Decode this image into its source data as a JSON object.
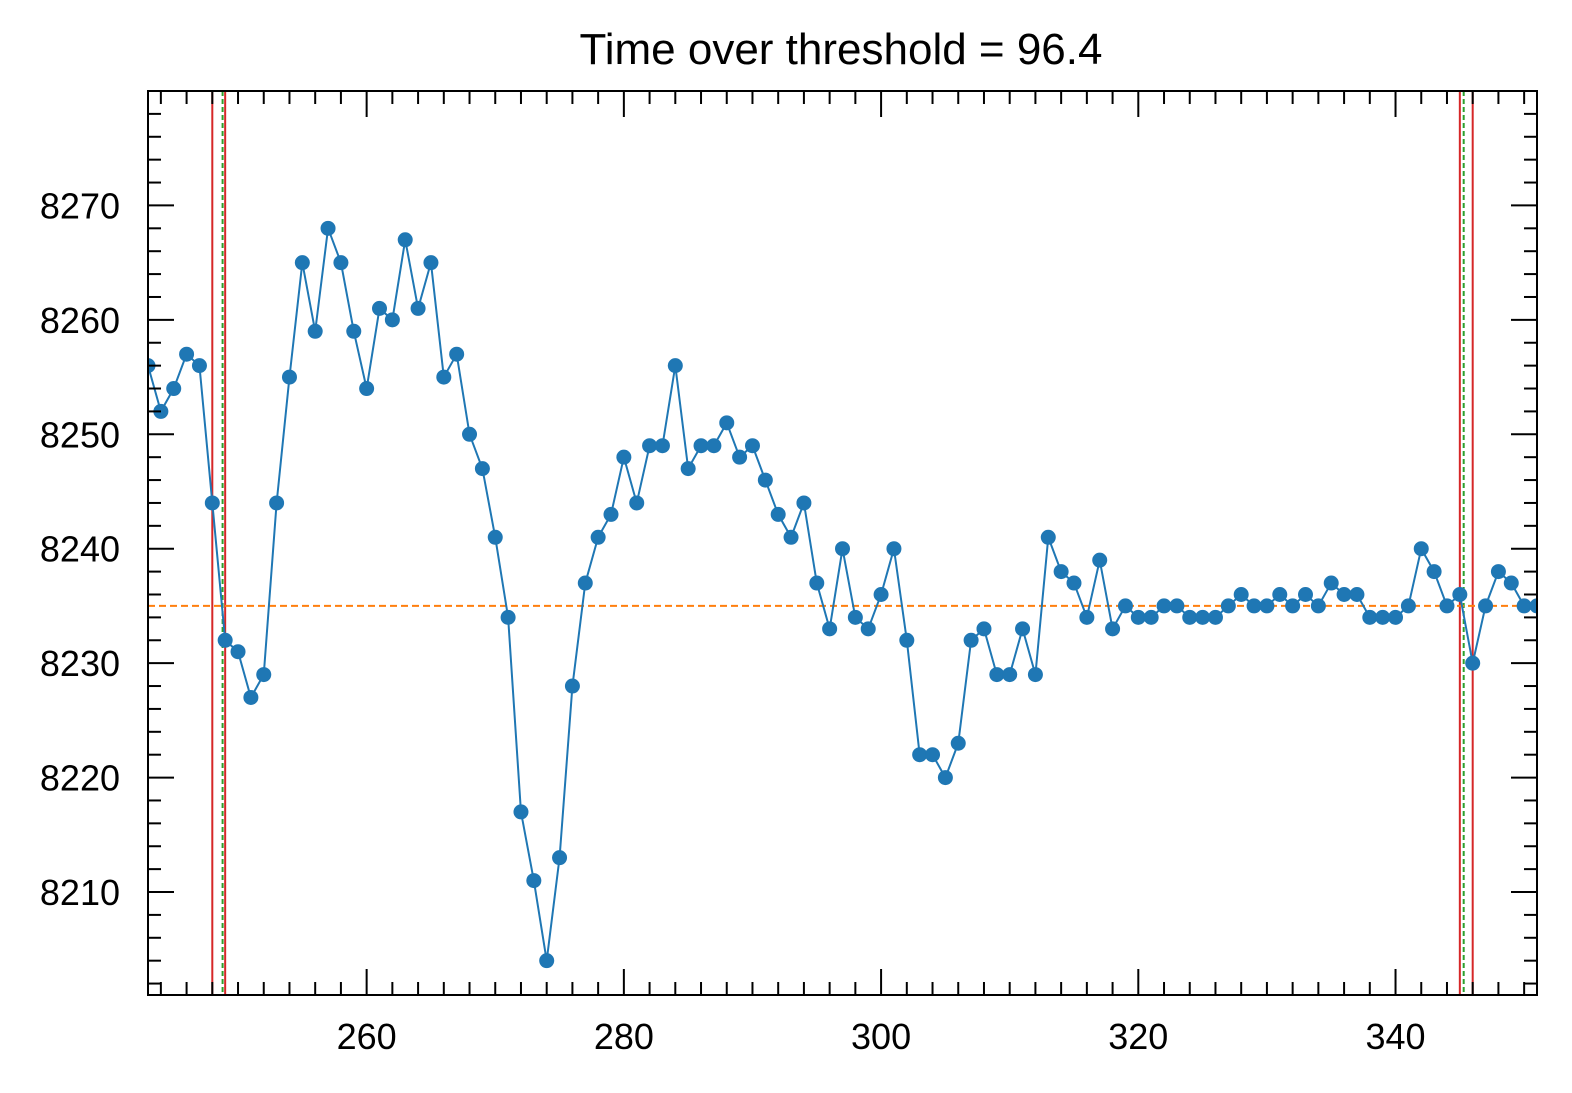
{
  "chart_data": {
    "type": "line",
    "title": "Time over threshold = 96.4",
    "xlabel": "",
    "ylabel": "",
    "xlim": [
      243,
      351
    ],
    "ylim": [
      8201,
      8280
    ],
    "x_ticks": [
      260,
      280,
      300,
      320,
      340
    ],
    "y_ticks": [
      8210,
      8220,
      8230,
      8240,
      8250,
      8260,
      8270
    ],
    "grid": false,
    "series": [
      {
        "color": "#1f77b4",
        "marker": "circle",
        "x": [
          243,
          244,
          245,
          246,
          247,
          248,
          249,
          250,
          251,
          252,
          253,
          254,
          255,
          256,
          257,
          258,
          259,
          260,
          261,
          262,
          263,
          264,
          265,
          266,
          267,
          268,
          269,
          270,
          271,
          272,
          273,
          274,
          275,
          276,
          277,
          278,
          279,
          280,
          281,
          282,
          283,
          284,
          285,
          286,
          287,
          288,
          289,
          290,
          291,
          292,
          293,
          294,
          295,
          296,
          297,
          298,
          299,
          300,
          301,
          302,
          303,
          304,
          305,
          306,
          307,
          308,
          309,
          310,
          311,
          312,
          313,
          314,
          315,
          316,
          317,
          318,
          319,
          320,
          321,
          322,
          323,
          324,
          325,
          326,
          327,
          328,
          329,
          330,
          331,
          332,
          333,
          334,
          335,
          336,
          337,
          338,
          339,
          340,
          341,
          342,
          343,
          344,
          345,
          346,
          347,
          348,
          349,
          350,
          351
        ],
        "y": [
          8256,
          8252,
          8254,
          8257,
          8256,
          8244,
          8232,
          8231,
          8227,
          8229,
          8244,
          8255,
          8265,
          8259,
          8268,
          8265,
          8259,
          8254,
          8261,
          8260,
          8267,
          8261,
          8265,
          8255,
          8257,
          8250,
          8247,
          8241,
          8234,
          8217,
          8211,
          8204,
          8213,
          8228,
          8237,
          8241,
          8243,
          8248,
          8244,
          8249,
          8249,
          8256,
          8247,
          8249,
          8249,
          8251,
          8248,
          8249,
          8246,
          8243,
          8241,
          8244,
          8237,
          8233,
          8240,
          8234,
          8233,
          8236,
          8240,
          8232,
          8222,
          8222,
          8220,
          8223,
          8232,
          8233,
          8229,
          8229,
          8233,
          8229,
          8241,
          8238,
          8237,
          8234,
          8239,
          8233,
          8235,
          8234,
          8234,
          8235,
          8235,
          8234,
          8234,
          8234,
          8235,
          8236,
          8235,
          8235,
          8236,
          8235,
          8236,
          8235,
          8237,
          8236,
          8236,
          8234,
          8234,
          8234,
          8235,
          8240,
          8238,
          8235,
          8236,
          8230,
          8235,
          8238,
          8237,
          8235,
          8235
        ]
      }
    ],
    "baseline": {
      "y": 8235,
      "color": "#ff7f0e",
      "style": "dashed"
    },
    "red_vlines": {
      "x": [
        248,
        249,
        345,
        346
      ],
      "color": "#d62728"
    },
    "green_vlines": {
      "x": [
        248.8,
        345.3
      ],
      "color": "#2ca02c",
      "style": "dashed"
    }
  }
}
